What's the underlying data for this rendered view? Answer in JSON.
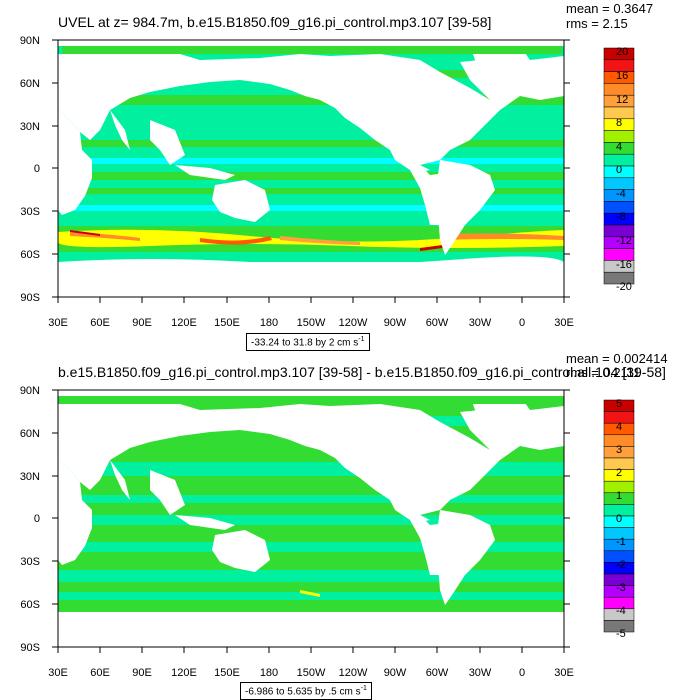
{
  "panels": [
    {
      "title": "UVEL at z= 984.7m, b.e15.B1850.f09_g16.pi_control.mp3.107 [39-58]",
      "mean_text": "mean = 0.3647",
      "rms_text": "rms = 2.15",
      "range_text": "-33.24 to 31.8 by 2 cm s",
      "range_exp": "-1",
      "colorbar_labels": [
        "20",
        "16",
        "12",
        "8",
        "4",
        "0",
        "-4",
        "-8",
        "-12",
        "-16",
        "-20"
      ]
    },
    {
      "title": "b.e15.B1850.f09_g16.pi_control.mp3.107 [39-58] - b.e15.B1850.f09_g16.pi_control.all.104 [39-58]",
      "mean_text": "mean = 0.002414",
      "rms_text": "rms = 0.2111",
      "range_text": "-6.986 to 5.635 by .5 cm s",
      "range_exp": "-1",
      "colorbar_labels": [
        "5",
        "4",
        "3",
        "2",
        "1",
        "0",
        "-1",
        "-2",
        "-3",
        "-4",
        "-5"
      ]
    }
  ],
  "lat_labels": [
    "90N",
    "60N",
    "30N",
    "0",
    "30S",
    "60S",
    "90S"
  ],
  "lon_labels": [
    "30E",
    "60E",
    "90E",
    "120E",
    "150E",
    "180",
    "150W",
    "120W",
    "90W",
    "60W",
    "30W",
    "0",
    "30E"
  ],
  "colorbar_colors": [
    "#c80000",
    "#f01414",
    "#ff5a00",
    "#ff8c28",
    "#ffa03c",
    "#ffc850",
    "#ffff00",
    "#a0f000",
    "#32dc32",
    "#00f0a0",
    "#00ffff",
    "#00c8ff",
    "#0096ff",
    "#0050ff",
    "#0000ff",
    "#7800d2",
    "#b400ff",
    "#ff00ff",
    "#c8c8c8",
    "#787878"
  ],
  "colors": {
    "land": "#ffffff",
    "ocean_dominant": "#32dc32",
    "ocean_secondary": "#00f0a0",
    "acc": "#ffff00"
  }
}
